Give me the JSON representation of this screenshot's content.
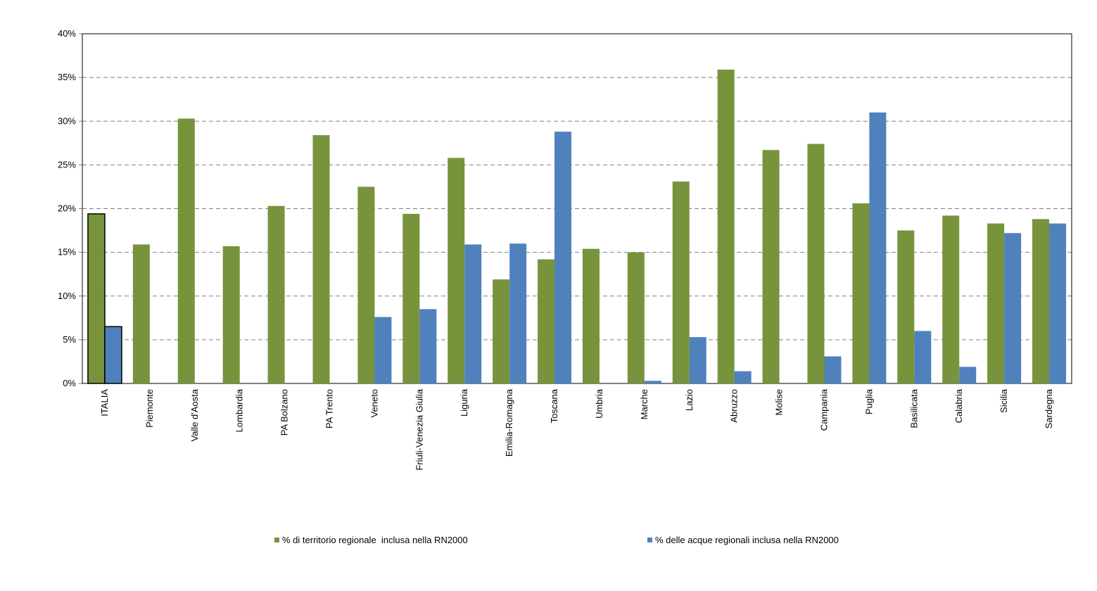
{
  "chart_data": {
    "type": "bar",
    "title": "",
    "xlabel": "",
    "ylabel": "",
    "ylim": [
      0,
      40
    ],
    "yticks": [
      "0%",
      "5%",
      "10%",
      "15%",
      "20%",
      "25%",
      "30%",
      "35%",
      "40%"
    ],
    "grid": true,
    "legend_position": "bottom",
    "categories": [
      "ITALIA",
      "Piemonte",
      "Valle d'Aosta",
      "Lombardia",
      "PA Bolzano",
      "PA Trento",
      "Veneto",
      "Friuli-Venezia Giulia",
      "Liguria",
      "Emilia-Romagna",
      "Toscana",
      "Umbria",
      "Marche",
      "Lazio",
      "Abruzzo",
      "Molise",
      "Campania",
      "Puglia",
      "Basilicata",
      "Calabria",
      "Sicilia",
      "Sardegna"
    ],
    "series": [
      {
        "name": "% di territorio regionale  inclusa nella RN2000",
        "color": "#77933c",
        "values": [
          19.4,
          15.9,
          30.3,
          15.7,
          20.3,
          28.4,
          22.5,
          19.4,
          25.8,
          11.9,
          14.2,
          15.4,
          15.0,
          23.1,
          35.9,
          26.7,
          27.4,
          20.6,
          17.5,
          19.2,
          18.3,
          18.8
        ]
      },
      {
        "name": "% delle acque regionali inclusa nella RN2000",
        "color": "#4f81bd",
        "values": [
          6.5,
          0,
          0,
          0,
          0,
          0,
          7.6,
          8.5,
          15.9,
          16.0,
          28.8,
          0,
          0.3,
          5.3,
          1.4,
          0,
          3.1,
          31.0,
          6.0,
          1.9,
          17.2,
          18.3
        ]
      }
    ]
  }
}
